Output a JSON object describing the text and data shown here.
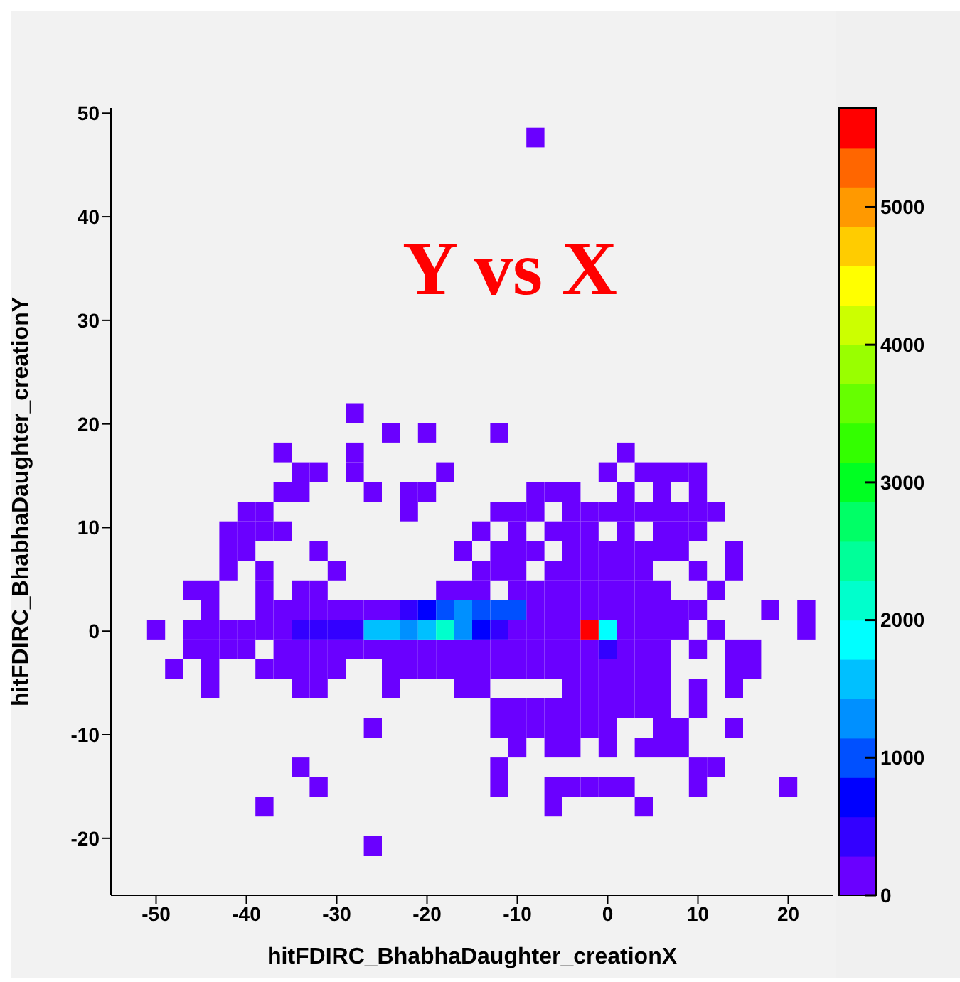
{
  "chart_data": {
    "type": "scatter",
    "marker": "square",
    "xlabel": "hitFDIRC_BhabhaDaughter_creationX",
    "ylabel": "hitFDIRC_BhabhaDaughter_creationY",
    "annotations": [
      "Y vs X"
    ],
    "xlim": [
      -55,
      25
    ],
    "xticks": [
      -50,
      -40,
      -30,
      -20,
      -10,
      0,
      10,
      20
    ],
    "ylim": [
      -25.5,
      50.5
    ],
    "yticks": [
      -20,
      -10,
      0,
      10,
      20,
      30,
      40,
      50
    ],
    "clim": [
      0,
      5720
    ],
    "cticks": [
      0,
      1000,
      2000,
      3000,
      4000,
      5000
    ],
    "series": [
      {
        "x": [
          -8
        ],
        "values": [
          47.65
        ],
        "cvalues": [
          150
        ]
      },
      {
        "x": [
          -28
        ],
        "values": [
          21.05
        ],
        "cvalues": [
          150
        ]
      },
      {
        "x": [
          -24,
          -20,
          -12
        ],
        "values": [
          19.15,
          19.15,
          19.15
        ],
        "cvalues": [
          150,
          150,
          150
        ]
      },
      {
        "x": [
          -36,
          -28,
          2
        ],
        "values": [
          17.25,
          17.25,
          17.25
        ],
        "cvalues": [
          150,
          150,
          150
        ]
      },
      {
        "x": [
          -34,
          -32,
          -28,
          -18,
          0,
          4,
          6,
          8,
          10
        ],
        "values": [
          15.35,
          15.35,
          15.35,
          15.35,
          15.35,
          15.35,
          15.35,
          15.35,
          15.35
        ],
        "cvalues": [
          150,
          150,
          150,
          150,
          150,
          150,
          150,
          150,
          150
        ]
      },
      {
        "x": [
          -36,
          -34,
          -26,
          -22,
          -20,
          -8,
          -6,
          -4,
          2,
          6,
          10
        ],
        "values": [
          13.45,
          13.45,
          13.45,
          13.45,
          13.45,
          13.45,
          13.45,
          13.45,
          13.45,
          13.45,
          13.45
        ],
        "cvalues": [
          150,
          150,
          150,
          150,
          150,
          150,
          150,
          150,
          150,
          150,
          150
        ]
      },
      {
        "x": [
          -40,
          -38,
          -22,
          -12,
          -10,
          -8,
          -4,
          -2,
          0,
          2,
          4,
          6,
          8,
          10,
          12
        ],
        "values": [
          11.55,
          11.55,
          11.55,
          11.55,
          11.55,
          11.55,
          11.55,
          11.55,
          11.55,
          11.55,
          11.55,
          11.55,
          11.55,
          11.55,
          11.55
        ],
        "cvalues": [
          150,
          150,
          150,
          150,
          150,
          150,
          150,
          150,
          150,
          150,
          150,
          150,
          150,
          150,
          150
        ]
      },
      {
        "x": [
          -42,
          -40,
          -38,
          -36,
          -14,
          -10,
          -6,
          -4,
          -2,
          2,
          6,
          8,
          10
        ],
        "values": [
          9.65,
          9.65,
          9.65,
          9.65,
          9.65,
          9.65,
          9.65,
          9.65,
          9.65,
          9.65,
          9.65,
          9.65,
          9.65
        ],
        "cvalues": [
          150,
          150,
          150,
          150,
          150,
          150,
          150,
          150,
          150,
          150,
          150,
          150,
          150
        ]
      },
      {
        "x": [
          -42,
          -40,
          -32,
          -16,
          -12,
          -10,
          -8,
          -4,
          -2,
          0,
          2,
          4,
          6,
          8,
          14
        ],
        "values": [
          7.75,
          7.75,
          7.75,
          7.75,
          7.75,
          7.75,
          7.75,
          7.75,
          7.75,
          7.75,
          7.75,
          7.75,
          7.75,
          7.75,
          7.75
        ],
        "cvalues": [
          150,
          150,
          150,
          150,
          150,
          150,
          150,
          150,
          150,
          150,
          150,
          150,
          150,
          150,
          150
        ]
      },
      {
        "x": [
          -42,
          -38,
          -30,
          -14,
          -12,
          -10,
          -6,
          -4,
          -2,
          0,
          2,
          4,
          10,
          14
        ],
        "values": [
          5.85,
          5.85,
          5.85,
          5.85,
          5.85,
          5.85,
          5.85,
          5.85,
          5.85,
          5.85,
          5.85,
          5.85,
          5.85,
          5.85
        ],
        "cvalues": [
          150,
          150,
          150,
          150,
          150,
          150,
          150,
          150,
          150,
          150,
          150,
          150,
          150,
          150
        ]
      },
      {
        "x": [
          -46,
          -44,
          -38,
          -34,
          -32,
          -18,
          -16,
          -14,
          -10,
          -8,
          -6,
          -4,
          -2,
          0,
          2,
          4,
          6,
          12
        ],
        "values": [
          3.95,
          3.95,
          3.95,
          3.95,
          3.95,
          3.95,
          3.95,
          3.95,
          3.95,
          3.95,
          3.95,
          3.95,
          3.95,
          3.95,
          3.95,
          3.95,
          3.95,
          3.95
        ],
        "cvalues": [
          150,
          150,
          150,
          150,
          150,
          150,
          150,
          150,
          150,
          150,
          150,
          150,
          150,
          150,
          150,
          150,
          150,
          150
        ]
      },
      {
        "x": [
          -44,
          -38,
          -36,
          -34,
          -32,
          -30,
          -28,
          -26,
          -24,
          -8,
          -6,
          -4,
          -2,
          0,
          2,
          4,
          6,
          8,
          10,
          18,
          22
        ],
        "values": [
          2.05,
          2.05,
          2.05,
          2.05,
          2.05,
          2.05,
          2.05,
          2.05,
          2.05,
          2.05,
          2.05,
          2.05,
          2.05,
          2.05,
          2.05,
          2.05,
          2.05,
          2.05,
          2.05,
          2.05,
          2.05
        ],
        "cvalues": [
          150,
          150,
          150,
          150,
          150,
          150,
          150,
          150,
          150,
          150,
          150,
          150,
          150,
          150,
          150,
          150,
          150,
          150,
          150,
          150,
          150
        ]
      },
      {
        "x": [
          -50,
          -46,
          -44,
          -42,
          -40,
          -38,
          -36,
          -10,
          -8,
          -6,
          -4,
          2,
          4,
          6,
          8,
          12,
          22
        ],
        "values": [
          0.15,
          0.15,
          0.15,
          0.15,
          0.15,
          0.15,
          0.15,
          0.15,
          0.15,
          0.15,
          0.15,
          0.15,
          0.15,
          0.15,
          0.15,
          0.15,
          0.15
        ],
        "cvalues": [
          150,
          150,
          150,
          150,
          150,
          150,
          150,
          150,
          150,
          150,
          150,
          150,
          150,
          150,
          150,
          150,
          150
        ]
      },
      {
        "x": [
          -46,
          -44,
          -42,
          -40,
          -36,
          -34,
          -32,
          -30,
          -28,
          -26,
          -24,
          -22,
          -20,
          -18,
          -16,
          -14,
          -12,
          -10,
          -8,
          -6,
          -4,
          -2,
          2,
          4,
          6,
          10,
          14,
          16
        ],
        "values": [
          -1.75,
          -1.75,
          -1.75,
          -1.75,
          -1.75,
          -1.75,
          -1.75,
          -1.75,
          -1.75,
          -1.75,
          -1.75,
          -1.75,
          -1.75,
          -1.75,
          -1.75,
          -1.75,
          -1.75,
          -1.75,
          -1.75,
          -1.75,
          -1.75,
          -1.75,
          -1.75,
          -1.75,
          -1.75,
          -1.75,
          -1.75,
          -1.75
        ],
        "cvalues": [
          150,
          150,
          150,
          150,
          150,
          150,
          150,
          150,
          150,
          150,
          150,
          150,
          150,
          150,
          150,
          150,
          150,
          150,
          150,
          150,
          150,
          150,
          150,
          150,
          150,
          150,
          150,
          150
        ]
      },
      {
        "x": [
          -48,
          -44,
          -38,
          -36,
          -34,
          -32,
          -30,
          -24,
          -22,
          -20,
          -18,
          -16,
          -14,
          -12,
          -10,
          -8,
          -6,
          -4,
          -2,
          0,
          2,
          4,
          6,
          14,
          16
        ],
        "values": [
          -3.65,
          -3.65,
          -3.65,
          -3.65,
          -3.65,
          -3.65,
          -3.65,
          -3.65,
          -3.65,
          -3.65,
          -3.65,
          -3.65,
          -3.65,
          -3.65,
          -3.65,
          -3.65,
          -3.65,
          -3.65,
          -3.65,
          -3.65,
          -3.65,
          -3.65,
          -3.65,
          -3.65,
          -3.65
        ],
        "cvalues": [
          150,
          150,
          150,
          150,
          150,
          150,
          150,
          150,
          150,
          150,
          150,
          150,
          150,
          150,
          150,
          150,
          150,
          150,
          150,
          150,
          150,
          150,
          150,
          150,
          150
        ]
      },
      {
        "x": [
          -44,
          -34,
          -32,
          -24,
          -16,
          -14,
          -4,
          -2,
          0,
          2,
          4,
          6,
          10,
          14
        ],
        "values": [
          -5.55,
          -5.55,
          -5.55,
          -5.55,
          -5.55,
          -5.55,
          -5.55,
          -5.55,
          -5.55,
          -5.55,
          -5.55,
          -5.55,
          -5.55,
          -5.55
        ],
        "cvalues": [
          150,
          150,
          150,
          150,
          150,
          150,
          150,
          150,
          150,
          150,
          150,
          150,
          150,
          150
        ]
      },
      {
        "x": [
          -12,
          -10,
          -8,
          -6,
          -4,
          -2,
          0,
          2,
          4,
          6,
          10
        ],
        "values": [
          -7.45,
          -7.45,
          -7.45,
          -7.45,
          -7.45,
          -7.45,
          -7.45,
          -7.45,
          -7.45,
          -7.45,
          -7.45
        ],
        "cvalues": [
          150,
          150,
          150,
          150,
          150,
          150,
          150,
          150,
          150,
          150,
          150
        ]
      },
      {
        "x": [
          -26,
          -12,
          -10,
          -8,
          -6,
          -4,
          -2,
          0,
          6,
          8,
          14
        ],
        "values": [
          -9.35,
          -9.35,
          -9.35,
          -9.35,
          -9.35,
          -9.35,
          -9.35,
          -9.35,
          -9.35,
          -9.35,
          -9.35
        ],
        "cvalues": [
          150,
          150,
          150,
          150,
          150,
          150,
          150,
          150,
          150,
          150,
          150
        ]
      },
      {
        "x": [
          -10,
          -6,
          -4,
          0,
          4,
          6,
          8
        ],
        "values": [
          -11.25,
          -11.25,
          -11.25,
          -11.25,
          -11.25,
          -11.25,
          -11.25
        ],
        "cvalues": [
          150,
          150,
          150,
          150,
          150,
          150,
          150
        ]
      },
      {
        "x": [
          -34,
          -12,
          10,
          12
        ],
        "values": [
          -13.15,
          -13.15,
          -13.15,
          -13.15
        ],
        "cvalues": [
          150,
          150,
          150,
          150
        ]
      },
      {
        "x": [
          -32,
          -12,
          -6,
          -4,
          -2,
          0,
          2,
          10,
          20
        ],
        "values": [
          -15.05,
          -15.05,
          -15.05,
          -15.05,
          -15.05,
          -15.05,
          -15.05,
          -15.05,
          -15.05
        ],
        "cvalues": [
          150,
          150,
          150,
          150,
          150,
          150,
          150,
          150,
          150
        ]
      },
      {
        "x": [
          -38,
          -6,
          4
        ],
        "values": [
          -16.95,
          -16.95,
          -16.95
        ],
        "cvalues": [
          150,
          150,
          150
        ]
      },
      {
        "x": [
          -26
        ],
        "values": [
          -20.75
        ],
        "cvalues": [
          150
        ]
      },
      {
        "x": [
          -22,
          -34,
          -32,
          -30,
          -28,
          -12,
          0
        ],
        "values": [
          2.05,
          0.15,
          0.15,
          0.15,
          0.15,
          0.15,
          -1.75
        ],
        "cvalues": [
          430,
          430,
          430,
          430,
          430,
          430,
          430
        ]
      },
      {
        "x": [
          -20,
          -14
        ],
        "values": [
          2.05,
          0.15
        ],
        "cvalues": [
          715,
          715
        ]
      },
      {
        "x": [
          -18,
          -14,
          -12,
          -10
        ],
        "values": [
          2.05,
          2.05,
          2.05,
          2.05
        ],
        "cvalues": [
          1000,
          1000,
          1000,
          1000
        ]
      },
      {
        "x": [
          -16,
          -22,
          -16
        ],
        "values": [
          2.05,
          0.15,
          0.15
        ],
        "cvalues": [
          1290,
          1290,
          1290
        ]
      },
      {
        "x": [
          -26,
          -24,
          -20
        ],
        "values": [
          0.15,
          0.15,
          0.15
        ],
        "cvalues": [
          1570,
          1570,
          1570
        ]
      },
      {
        "x": [
          0
        ],
        "values": [
          0.15
        ],
        "cvalues": [
          1860
        ]
      },
      {
        "x": [
          -18
        ],
        "values": [
          0.15
        ],
        "cvalues": [
          2150
        ]
      },
      {
        "x": [
          -2
        ],
        "values": [
          0.15
        ],
        "cvalues": [
          5580
        ]
      }
    ]
  }
}
